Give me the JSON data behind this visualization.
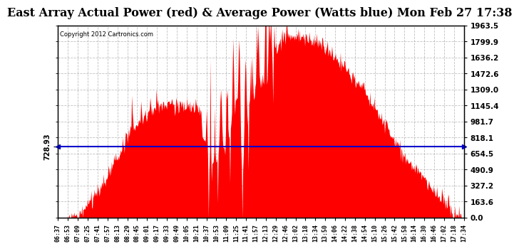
{
  "title": "East Array Actual Power (red) & Average Power (Watts blue) Mon Feb 27 17:38",
  "copyright": "Copyright 2012 Cartronics.com",
  "average_power": 728.93,
  "y_max": 1963.5,
  "y_min": 0.0,
  "y_ticks": [
    0.0,
    163.6,
    327.2,
    490.9,
    654.5,
    818.1,
    981.7,
    1145.4,
    1309.0,
    1472.6,
    1636.2,
    1799.9,
    1963.5
  ],
  "avg_label": "728.93",
  "background_color": "#ffffff",
  "fill_color": "#ff0000",
  "line_color": "#0000cc",
  "grid_color": "#b0b0b0",
  "title_fontsize": 11.5,
  "x_times": [
    "06:37",
    "06:53",
    "07:09",
    "07:25",
    "07:41",
    "07:57",
    "08:13",
    "08:29",
    "08:45",
    "09:01",
    "09:17",
    "09:33",
    "09:49",
    "10:05",
    "10:21",
    "10:37",
    "10:53",
    "11:09",
    "11:25",
    "11:41",
    "11:57",
    "12:13",
    "12:29",
    "12:46",
    "13:02",
    "13:18",
    "13:34",
    "13:50",
    "14:06",
    "14:22",
    "14:38",
    "14:54",
    "15:10",
    "15:26",
    "15:42",
    "15:58",
    "16:14",
    "16:30",
    "16:46",
    "17:02",
    "17:18",
    "17:34"
  ],
  "n_points": 662
}
